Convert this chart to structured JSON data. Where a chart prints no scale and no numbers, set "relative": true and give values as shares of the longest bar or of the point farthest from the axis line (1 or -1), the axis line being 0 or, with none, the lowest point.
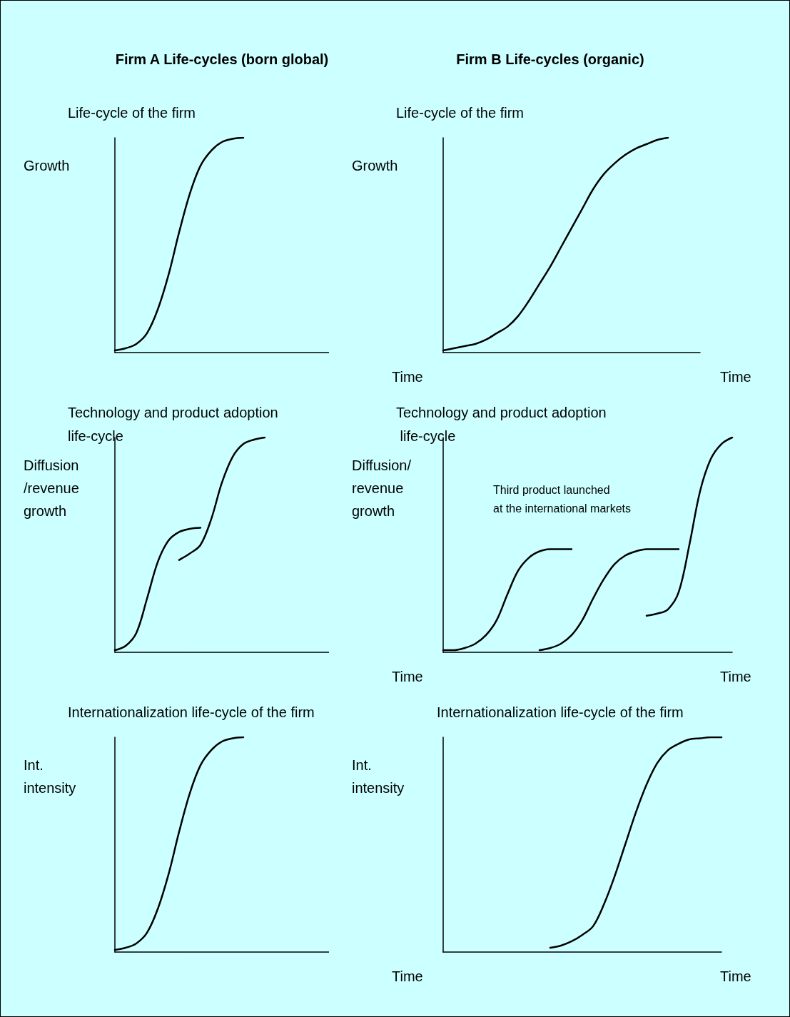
{
  "chart_data": [
    {
      "type": "line",
      "title": "Firm A Life-cycles (born global)",
      "subtitle": "Life-cycle of the firm",
      "ylabel": "Growth",
      "xlabel": "Time",
      "relative": true,
      "marker": "none",
      "line_style": "solid",
      "categories": [
        null,
        null,
        null,
        null,
        null,
        null,
        null,
        null,
        null,
        null,
        null,
        null,
        null,
        null,
        null,
        null,
        null,
        null,
        null,
        null,
        null,
        null,
        null,
        null,
        null
      ],
      "series": [
        {
          "color": "#000000",
          "values": [
            0.01,
            0.02,
            0.04,
            0.09,
            0.2,
            0.36,
            0.56,
            0.74,
            0.87,
            0.94,
            0.98,
            0.995,
            1.0,
            null,
            null,
            null,
            null,
            null,
            null,
            null,
            null,
            null,
            null,
            null,
            null
          ]
        }
      ]
    },
    {
      "type": "line",
      "title": "Firm B Life-cycles (organic)",
      "subtitle": "Life-cycle of the firm",
      "ylabel": "Growth",
      "xlabel": "Time",
      "relative": true,
      "marker": "none",
      "line_style": "solid",
      "categories": [
        null,
        null,
        null,
        null,
        null,
        null,
        null,
        null,
        null,
        null,
        null,
        null,
        null,
        null,
        null,
        null,
        null,
        null,
        null,
        null,
        null,
        null,
        null,
        null,
        null
      ],
      "series": [
        {
          "color": "#000000",
          "values": [
            0.01,
            0.02,
            0.03,
            0.04,
            0.06,
            0.09,
            0.12,
            0.17,
            0.24,
            0.32,
            0.4,
            0.49,
            0.58,
            0.67,
            0.76,
            0.83,
            0.88,
            0.92,
            0.95,
            0.97,
            0.99,
            1.0,
            null,
            null,
            null
          ]
        }
      ]
    },
    {
      "type": "line",
      "subtitle": "Technology and product adoption\nlife-cycle",
      "ylabel": "Diffusion\n/revenue\ngrowth",
      "xlabel": "Time",
      "relative": true,
      "marker": "none",
      "line_style": "solid",
      "categories": [
        null,
        null,
        null,
        null,
        null,
        null,
        null,
        null,
        null,
        null,
        null,
        null,
        null,
        null,
        null,
        null,
        null,
        null,
        null,
        null,
        null,
        null,
        null,
        null,
        null
      ],
      "series": [
        {
          "color": "#000000",
          "values": [
            0.01,
            0.03,
            0.09,
            0.25,
            0.42,
            0.52,
            0.56,
            0.575,
            0.58,
            null,
            null,
            null,
            null,
            null,
            null,
            null,
            null,
            null,
            null,
            null,
            null,
            null,
            null,
            null,
            null
          ]
        },
        {
          "color": "#000000",
          "values": [
            null,
            null,
            null,
            null,
            null,
            null,
            0.43,
            0.46,
            0.5,
            0.62,
            0.79,
            0.91,
            0.97,
            0.99,
            1.0,
            null,
            null,
            null,
            null,
            null,
            null,
            null,
            null,
            null,
            null
          ]
        }
      ]
    },
    {
      "type": "line",
      "subtitle": "Technology and product adoption\n life-cycle",
      "ylabel": "Diffusion/\nrevenue\ngrowth",
      "xlabel": "Time",
      "relative": true,
      "marker": "none",
      "line_style": "solid",
      "annotations": [
        "Third product launched\nat the international markets"
      ],
      "categories": [
        null,
        null,
        null,
        null,
        null,
        null,
        null,
        null,
        null,
        null,
        null,
        null,
        null,
        null,
        null,
        null,
        null,
        null,
        null,
        null,
        null,
        null,
        null,
        null,
        null,
        null,
        null,
        null
      ],
      "series": [
        {
          "color": "#000000",
          "values": [
            0.01,
            0.01,
            0.02,
            0.04,
            0.08,
            0.15,
            0.27,
            0.38,
            0.44,
            0.47,
            0.48,
            0.48,
            0.48,
            null,
            null,
            null,
            null,
            null,
            null,
            null,
            null,
            null,
            null,
            null,
            null,
            null,
            null,
            null
          ]
        },
        {
          "color": "#000000",
          "values": [
            null,
            null,
            null,
            null,
            null,
            null,
            null,
            null,
            null,
            0.01,
            0.02,
            0.04,
            0.08,
            0.15,
            0.25,
            0.34,
            0.41,
            0.45,
            0.47,
            0.48,
            0.48,
            0.48,
            0.48,
            null,
            null,
            null,
            null,
            null
          ]
        },
        {
          "color": "#000000",
          "values": [
            null,
            null,
            null,
            null,
            null,
            null,
            null,
            null,
            null,
            null,
            null,
            null,
            null,
            null,
            null,
            null,
            null,
            null,
            null,
            0.17,
            0.18,
            0.2,
            0.28,
            0.5,
            0.75,
            0.9,
            0.97,
            1.0
          ]
        }
      ]
    },
    {
      "type": "line",
      "subtitle": "Internationalization life-cycle of the firm",
      "ylabel": "Int.\nintensity",
      "xlabel": "Time",
      "relative": true,
      "marker": "none",
      "line_style": "solid",
      "categories": [
        null,
        null,
        null,
        null,
        null,
        null,
        null,
        null,
        null,
        null,
        null,
        null,
        null,
        null,
        null,
        null,
        null,
        null,
        null,
        null,
        null,
        null,
        null,
        null,
        null
      ],
      "series": [
        {
          "color": "#000000",
          "values": [
            0.01,
            0.02,
            0.04,
            0.09,
            0.2,
            0.36,
            0.56,
            0.74,
            0.87,
            0.94,
            0.98,
            0.995,
            1.0,
            null,
            null,
            null,
            null,
            null,
            null,
            null,
            null,
            null,
            null,
            null,
            null
          ]
        }
      ]
    },
    {
      "type": "line",
      "subtitle": "Internationalization life-cycle of the firm",
      "ylabel": "Int.\nintensity",
      "xlabel": "Time",
      "relative": true,
      "marker": "none",
      "line_style": "solid",
      "categories": [
        null,
        null,
        null,
        null,
        null,
        null,
        null,
        null,
        null,
        null,
        null,
        null,
        null,
        null,
        null,
        null,
        null,
        null,
        null,
        null,
        null,
        null,
        null,
        null,
        null,
        null,
        null
      ],
      "series": [
        {
          "color": "#000000",
          "values": [
            null,
            null,
            null,
            null,
            null,
            null,
            null,
            null,
            null,
            null,
            0.02,
            0.03,
            0.05,
            0.08,
            0.12,
            0.22,
            0.35,
            0.5,
            0.65,
            0.78,
            0.88,
            0.94,
            0.97,
            0.99,
            0.995,
            1.0,
            1.0
          ]
        }
      ]
    }
  ]
}
